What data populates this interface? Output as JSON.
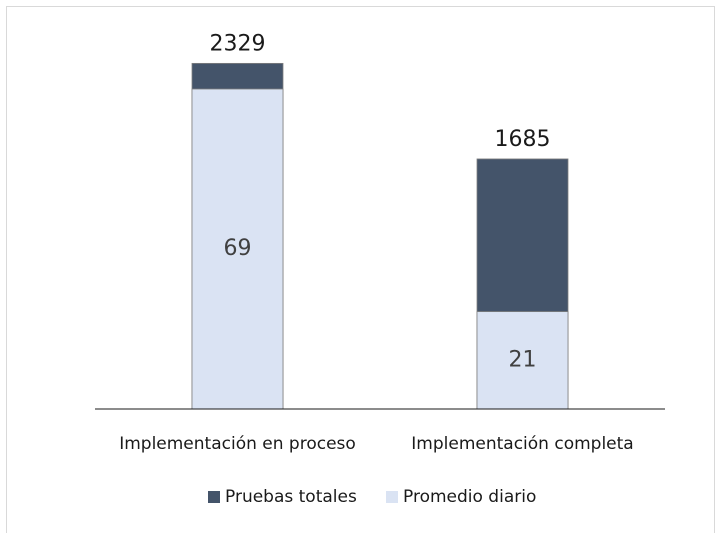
{
  "chart_data": {
    "type": "bar",
    "categories": [
      "Implementación en proceso",
      "Implementación completa"
    ],
    "series": [
      {
        "name": "Pruebas totales",
        "color": "#44546a",
        "values": [
          2329,
          1685
        ]
      },
      {
        "name": "Promedio diario",
        "color": "#dae3f3",
        "values": [
          69,
          21
        ],
        "axis": "y2"
      }
    ],
    "ylim": [
      0,
      2500
    ],
    "y2lim": [
      0,
      80
    ],
    "legend": "bottom"
  }
}
